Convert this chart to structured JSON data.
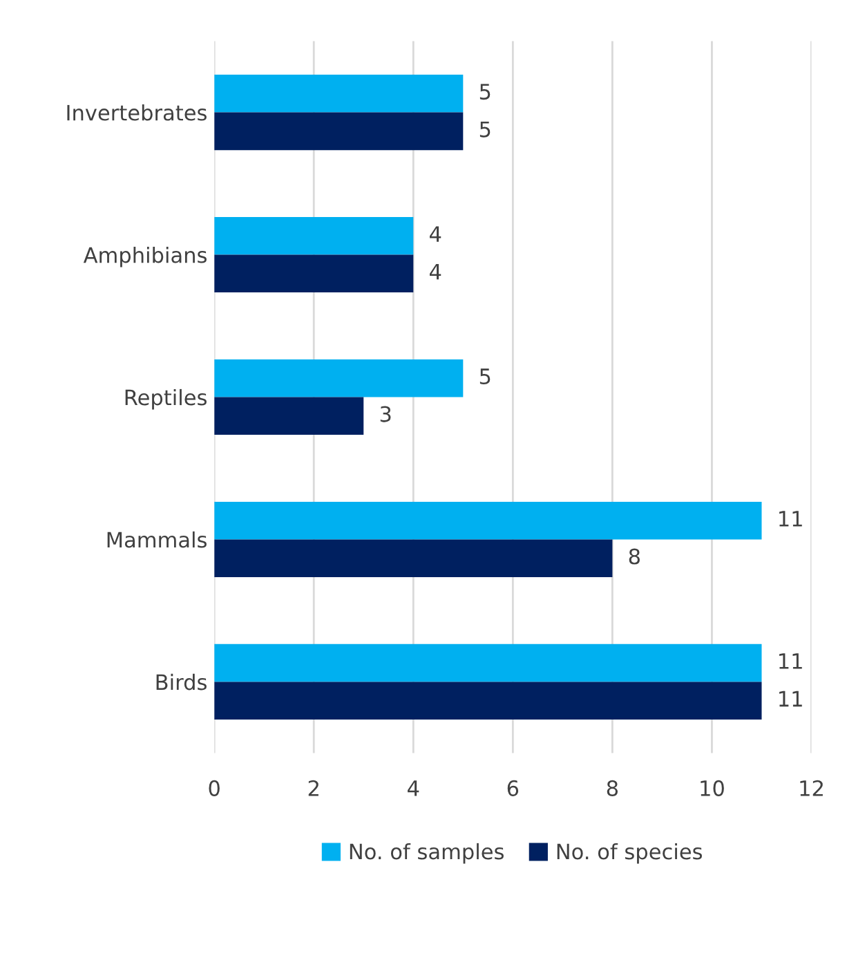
{
  "chart_data": {
    "type": "bar",
    "orientation": "horizontal",
    "categories": [
      "Invertebrates",
      "Amphibians",
      "Reptiles",
      "Mammals",
      "Birds"
    ],
    "series": [
      {
        "name": "No. of samples",
        "color": "#00b0f0",
        "values": [
          5,
          4,
          5,
          11,
          11
        ]
      },
      {
        "name": "No. of species",
        "color": "#002060",
        "values": [
          5,
          4,
          3,
          8,
          11
        ]
      }
    ],
    "xlim": [
      0,
      12
    ],
    "xticks": [
      0,
      2,
      4,
      6,
      8,
      10,
      12
    ],
    "grid": "x",
    "legend": "bottom",
    "data_labels": true
  }
}
